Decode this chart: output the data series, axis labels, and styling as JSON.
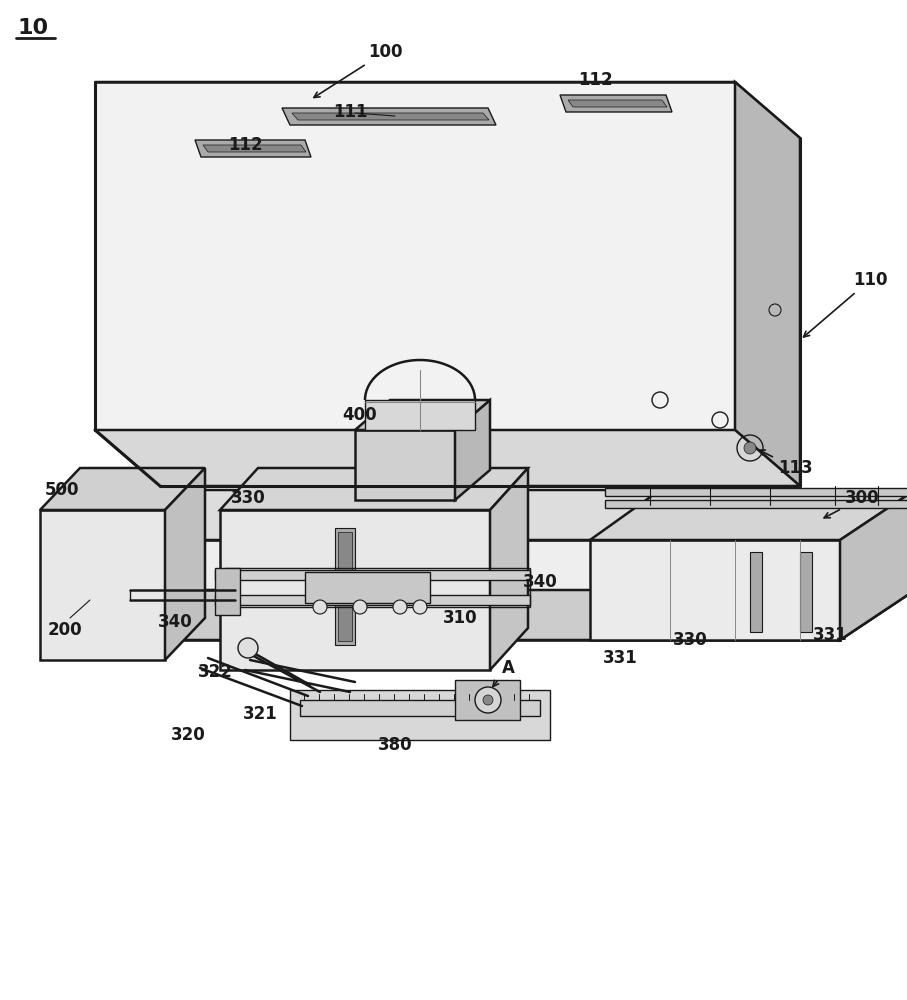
{
  "bg": "#ffffff",
  "lc": "#1a1a1a",
  "lc_light": "#555555",
  "figsize": [
    9.07,
    10.0
  ],
  "dpi": 100,
  "gray_top": "#cccccc",
  "gray_front": "#f2f2f2",
  "gray_right": "#b8b8b8",
  "gray_dark": "#888888",
  "gray_med": "#d8d8d8",
  "gray_slot": "#aaaaaa"
}
